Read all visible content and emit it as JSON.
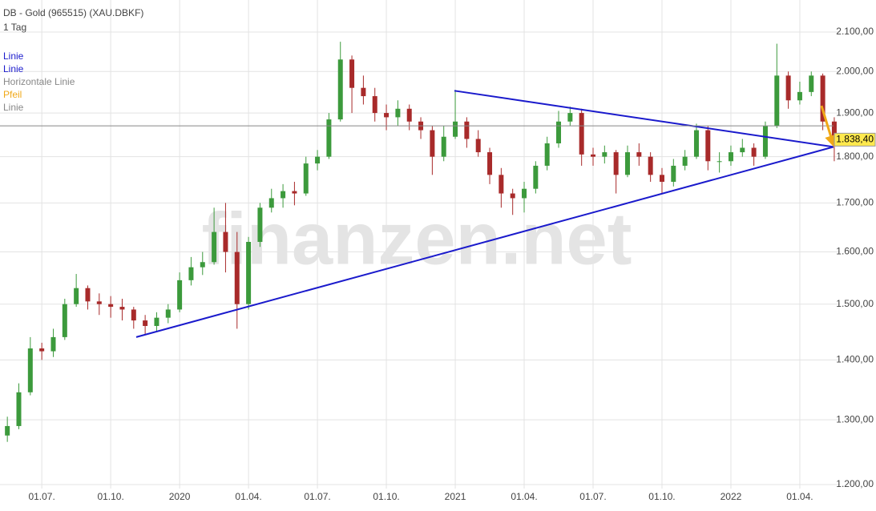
{
  "chart_data": {
    "type": "candlestick",
    "title": "DB - Gold (965515) (XAU.DBKF)",
    "subtitle": "1 Tag",
    "watermark": "finanzen.net",
    "log_scale": true,
    "grid": true,
    "up_color": "#3c9a3c",
    "down_color": "#a82a2a",
    "categories": [
      null,
      null,
      null,
      "01.07.",
      null,
      null,
      null,
      null,
      null,
      "01.10.",
      null,
      null,
      null,
      null,
      null,
      "2020",
      null,
      null,
      null,
      null,
      null,
      "01.04.",
      null,
      null,
      null,
      null,
      null,
      "01.07.",
      null,
      null,
      null,
      null,
      null,
      "01.10.",
      null,
      null,
      null,
      null,
      null,
      "2021",
      null,
      null,
      null,
      null,
      null,
      "01.04.",
      null,
      null,
      null,
      null,
      null,
      "01.07.",
      null,
      null,
      null,
      null,
      null,
      "01.10.",
      null,
      null,
      null,
      null,
      null,
      "2022",
      null,
      null,
      null,
      null,
      null,
      "01.04.",
      null,
      null,
      null
    ],
    "open": [
      1275,
      1290,
      1345,
      1420,
      1415,
      1440,
      1500,
      1530,
      1505,
      1500,
      1495,
      1490,
      1470,
      1460,
      1475,
      1490,
      1545,
      1570,
      1580,
      1640,
      1600,
      1500,
      1620,
      1690,
      1710,
      1725,
      1720,
      1785,
      1800,
      1885,
      2030,
      1960,
      1940,
      1900,
      1890,
      1910,
      1880,
      1860,
      1800,
      1845,
      1880,
      1840,
      1810,
      1760,
      1720,
      1710,
      1730,
      1780,
      1830,
      1880,
      1900,
      1805,
      1800,
      1810,
      1760,
      1810,
      1800,
      1760,
      1745,
      1780,
      1800,
      1860,
      1790,
      1790,
      1810,
      1820,
      1800,
      1870,
      1990,
      1930,
      1950,
      1990,
      1880
    ],
    "high": [
      1305,
      1360,
      1440,
      1430,
      1455,
      1510,
      1557,
      1535,
      1520,
      1515,
      1510,
      1495,
      1480,
      1485,
      1500,
      1560,
      1590,
      1600,
      1690,
      1700,
      1640,
      1630,
      1700,
      1730,
      1740,
      1745,
      1800,
      1815,
      1900,
      2075,
      2040,
      1990,
      1960,
      1920,
      1930,
      1920,
      1890,
      1870,
      1870,
      1955,
      1890,
      1860,
      1820,
      1775,
      1730,
      1745,
      1790,
      1845,
      1905,
      1915,
      1910,
      1820,
      1825,
      1815,
      1825,
      1830,
      1810,
      1775,
      1795,
      1815,
      1875,
      1870,
      1810,
      1825,
      1840,
      1830,
      1880,
      2070,
      2000,
      1975,
      2000,
      1995,
      1890
    ],
    "low": [
      1265,
      1285,
      1340,
      1400,
      1405,
      1435,
      1495,
      1490,
      1480,
      1475,
      1470,
      1455,
      1445,
      1450,
      1465,
      1485,
      1535,
      1555,
      1575,
      1560,
      1455,
      1490,
      1610,
      1680,
      1690,
      1695,
      1715,
      1770,
      1795,
      1880,
      1900,
      1920,
      1880,
      1860,
      1870,
      1860,
      1840,
      1760,
      1790,
      1840,
      1820,
      1800,
      1740,
      1690,
      1675,
      1680,
      1720,
      1770,
      1820,
      1870,
      1780,
      1780,
      1785,
      1720,
      1755,
      1780,
      1745,
      1720,
      1735,
      1770,
      1795,
      1770,
      1765,
      1780,
      1800,
      1780,
      1795,
      1865,
      1910,
      1920,
      1940,
      1860,
      1790
    ],
    "close": [
      1290,
      1345,
      1420,
      1415,
      1440,
      1500,
      1530,
      1505,
      1500,
      1495,
      1490,
      1470,
      1460,
      1475,
      1490,
      1545,
      1570,
      1580,
      1640,
      1600,
      1500,
      1620,
      1690,
      1710,
      1725,
      1720,
      1785,
      1800,
      1885,
      2030,
      1960,
      1940,
      1900,
      1890,
      1910,
      1880,
      1860,
      1800,
      1845,
      1880,
      1840,
      1810,
      1760,
      1720,
      1710,
      1730,
      1780,
      1830,
      1880,
      1900,
      1805,
      1800,
      1810,
      1760,
      1810,
      1800,
      1760,
      1745,
      1780,
      1800,
      1860,
      1790,
      1790,
      1810,
      1820,
      1800,
      1870,
      1990,
      1930,
      1950,
      1990,
      1880,
      1838.4
    ],
    "last_price_label": "1.838,40",
    "last_price_color": "#ffe94d",
    "ylim": [
      1194,
      2185
    ],
    "yticks": [
      {
        "value": 1200,
        "label": "1.200,00"
      },
      {
        "value": 1300,
        "label": "1.300,00"
      },
      {
        "value": 1400,
        "label": "1.400,00"
      },
      {
        "value": 1500,
        "label": "1.500,00"
      },
      {
        "value": 1600,
        "label": "1.600,00"
      },
      {
        "value": 1700,
        "label": "1.700,00"
      },
      {
        "value": 1800,
        "label": "1.800,00"
      },
      {
        "value": 1900,
        "label": "1.900,00"
      },
      {
        "value": 2000,
        "label": "2.000,00"
      },
      {
        "value": 2100,
        "label": "2.100,00"
      }
    ],
    "drawings": [
      {
        "name": "Linie",
        "color": "#1a1acc",
        "values": [
          1440,
          1822
        ]
      },
      {
        "name": "Linie",
        "color": "#1a1acc",
        "values": [
          1953,
          1822
        ]
      },
      {
        "name": "Horizontale Linie",
        "color": "#888888",
        "values": [
          1870
        ]
      },
      {
        "name": "Pfeil",
        "color": "#f0a818",
        "values": [
          1917,
          1826
        ]
      },
      {
        "name": "Linie",
        "color": "#888888"
      }
    ]
  }
}
